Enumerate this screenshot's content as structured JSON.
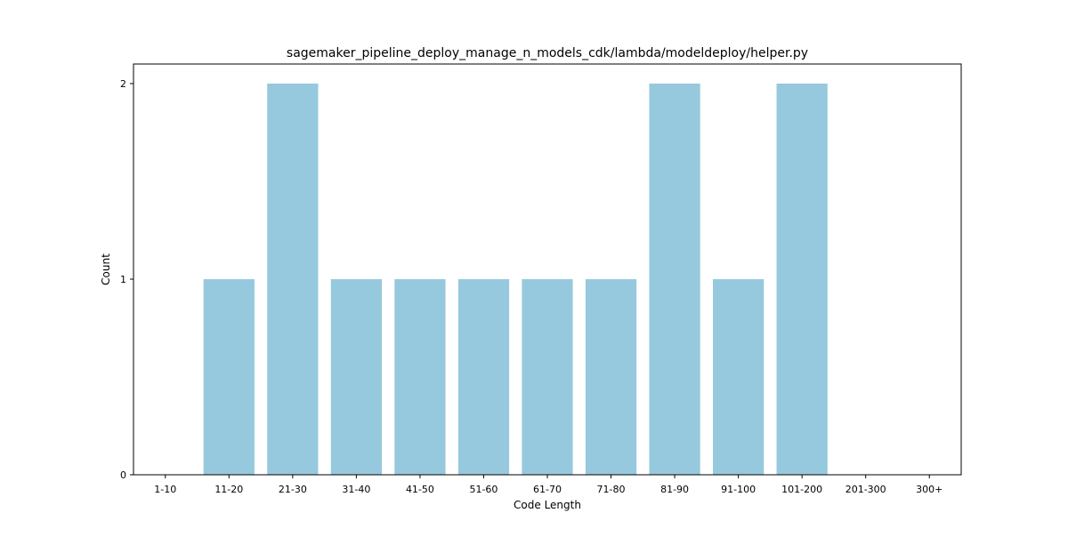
{
  "chart_data": {
    "type": "bar",
    "title": "sagemaker_pipeline_deploy_manage_n_models_cdk/lambda/modeldeploy/helper.py",
    "xlabel": "Code Length",
    "ylabel": "Count",
    "categories": [
      "1-10",
      "11-20",
      "21-30",
      "31-40",
      "41-50",
      "51-60",
      "61-70",
      "71-80",
      "81-90",
      "91-100",
      "101-200",
      "201-300",
      "300+"
    ],
    "values": [
      0,
      1,
      2,
      1,
      1,
      1,
      1,
      1,
      2,
      1,
      2,
      0,
      0
    ],
    "ylim": [
      0,
      2.1
    ],
    "yticks": [
      0,
      1,
      2
    ],
    "grid": false,
    "colors": {
      "bar": "#96c9dd",
      "axis": "#000000"
    }
  }
}
